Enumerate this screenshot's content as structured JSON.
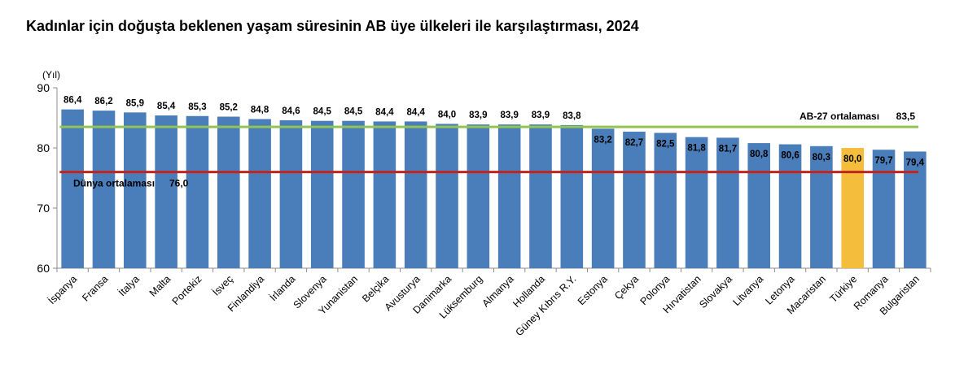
{
  "chart_data": {
    "type": "bar",
    "title": "Kadınlar için doğuşta beklenen yaşam süresinin AB üye ülkeleri ile karşılaştırması, 2024",
    "ylabel": "(Yıl)",
    "xlabel": "",
    "ylim": [
      60,
      90
    ],
    "yticks": [
      "60",
      "70",
      "80",
      "90"
    ],
    "categories": [
      "İspanya",
      "Fransa",
      "İtalya",
      "Malta",
      "Portekiz",
      "İsveç",
      "Finlandiya",
      "İrlanda",
      "Slovenya",
      "Yunanistan",
      "Belçika",
      "Avusturya",
      "Danimarka",
      "Lüksemburg",
      "Almanya",
      "Hollanda",
      "Güney Kıbrıs R.Y.",
      "Estonya",
      "Çekya",
      "Polonya",
      "Hırvatistan",
      "Slovakya",
      "Litvanya",
      "Letonya",
      "Macaristan",
      "Türkiye",
      "Romanya",
      "Bulgaristan"
    ],
    "values": [
      86.4,
      86.2,
      85.9,
      85.4,
      85.3,
      85.2,
      84.8,
      84.6,
      84.5,
      84.5,
      84.4,
      84.4,
      84.0,
      83.9,
      83.9,
      83.9,
      83.8,
      83.2,
      82.7,
      82.5,
      81.8,
      81.7,
      80.8,
      80.6,
      80.3,
      80.0,
      79.7,
      79.4
    ],
    "value_labels": [
      "86,4",
      "86,2",
      "85,9",
      "85,4",
      "85,3",
      "85,2",
      "84,8",
      "84,6",
      "84,5",
      "84,5",
      "84,4",
      "84,4",
      "84,0",
      "83,9",
      "83,9",
      "83,9",
      "83,8",
      "83,2",
      "82,7",
      "82,5",
      "81,8",
      "81,7",
      "80,8",
      "80,6",
      "80,3",
      "80,0",
      "79,7",
      "79,4"
    ],
    "highlight_category": "Türkiye",
    "reference_lines": [
      {
        "name": "AB-27 ortalaması",
        "value": 83.5,
        "value_label": "83,5",
        "color": "#92c353"
      },
      {
        "name": "Dünya ortalaması",
        "value": 76.0,
        "value_label": "76,0",
        "color": "#c0241c"
      }
    ],
    "colors": {
      "bar": "#4a7ebb",
      "highlight": "#f5bd3c",
      "axis": "#8c8c8c"
    }
  }
}
